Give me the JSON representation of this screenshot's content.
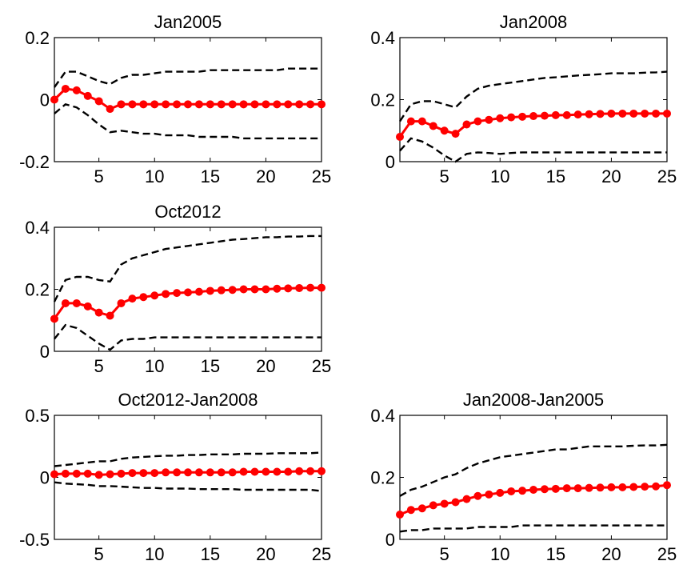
{
  "chart_data": [
    {
      "type": "line",
      "title": "Jan2005",
      "x": [
        1,
        2,
        3,
        4,
        5,
        6,
        7,
        8,
        9,
        10,
        11,
        12,
        13,
        14,
        15,
        16,
        17,
        18,
        19,
        20,
        21,
        22,
        23,
        24,
        25
      ],
      "xticks": [
        5,
        10,
        15,
        20,
        25
      ],
      "xlim": [
        1,
        25
      ],
      "ylim": [
        -0.2,
        0.2
      ],
      "yticks": [
        -0.2,
        0,
        0.2
      ],
      "ytick_labels": [
        "-0.2",
        "0",
        "0.2"
      ],
      "series": [
        {
          "role": "median",
          "color": "#ff0000",
          "values": [
            0.0,
            0.035,
            0.03,
            0.012,
            -0.005,
            -0.03,
            -0.015,
            -0.015,
            -0.015,
            -0.015,
            -0.015,
            -0.015,
            -0.015,
            -0.015,
            -0.015,
            -0.015,
            -0.015,
            -0.015,
            -0.015,
            -0.015,
            -0.015,
            -0.015,
            -0.015,
            -0.015,
            -0.015
          ]
        },
        {
          "role": "upper",
          "color": "#000000",
          "values": [
            0.04,
            0.09,
            0.09,
            0.075,
            0.06,
            0.05,
            0.07,
            0.08,
            0.08,
            0.085,
            0.09,
            0.09,
            0.09,
            0.09,
            0.095,
            0.095,
            0.095,
            0.095,
            0.095,
            0.095,
            0.095,
            0.1,
            0.1,
            0.1,
            0.1
          ]
        },
        {
          "role": "lower",
          "color": "#000000",
          "values": [
            -0.045,
            -0.015,
            -0.025,
            -0.05,
            -0.08,
            -0.105,
            -0.1,
            -0.105,
            -0.11,
            -0.11,
            -0.115,
            -0.115,
            -0.115,
            -0.12,
            -0.12,
            -0.12,
            -0.12,
            -0.125,
            -0.125,
            -0.125,
            -0.125,
            -0.125,
            -0.125,
            -0.125,
            -0.125
          ]
        }
      ]
    },
    {
      "type": "line",
      "title": "Jan2008",
      "x": [
        1,
        2,
        3,
        4,
        5,
        6,
        7,
        8,
        9,
        10,
        11,
        12,
        13,
        14,
        15,
        16,
        17,
        18,
        19,
        20,
        21,
        22,
        23,
        24,
        25
      ],
      "xticks": [
        5,
        10,
        15,
        20,
        25
      ],
      "xlim": [
        1,
        25
      ],
      "ylim": [
        0,
        0.4
      ],
      "yticks": [
        0,
        0.2,
        0.4
      ],
      "ytick_labels": [
        "0",
        "0.2",
        "0.4"
      ],
      "series": [
        {
          "role": "median",
          "color": "#ff0000",
          "values": [
            0.08,
            0.13,
            0.13,
            0.115,
            0.1,
            0.09,
            0.12,
            0.13,
            0.135,
            0.14,
            0.143,
            0.145,
            0.147,
            0.148,
            0.15,
            0.15,
            0.152,
            0.153,
            0.154,
            0.155,
            0.155,
            0.155,
            0.155,
            0.155,
            0.155
          ]
        },
        {
          "role": "upper",
          "color": "#000000",
          "values": [
            0.13,
            0.185,
            0.195,
            0.195,
            0.185,
            0.175,
            0.21,
            0.235,
            0.245,
            0.25,
            0.255,
            0.26,
            0.265,
            0.27,
            0.272,
            0.275,
            0.278,
            0.28,
            0.282,
            0.285,
            0.285,
            0.285,
            0.287,
            0.288,
            0.29
          ]
        },
        {
          "role": "lower",
          "color": "#000000",
          "values": [
            0.035,
            0.075,
            0.065,
            0.045,
            0.02,
            0.0,
            0.025,
            0.03,
            0.028,
            0.025,
            0.028,
            0.03,
            0.03,
            0.03,
            0.03,
            0.03,
            0.03,
            0.03,
            0.03,
            0.03,
            0.03,
            0.03,
            0.03,
            0.03,
            0.03
          ]
        }
      ]
    },
    {
      "type": "line",
      "title": "Oct2012",
      "x": [
        1,
        2,
        3,
        4,
        5,
        6,
        7,
        8,
        9,
        10,
        11,
        12,
        13,
        14,
        15,
        16,
        17,
        18,
        19,
        20,
        21,
        22,
        23,
        24,
        25
      ],
      "xticks": [
        5,
        10,
        15,
        20,
        25
      ],
      "xlim": [
        1,
        25
      ],
      "ylim": [
        0,
        0.4
      ],
      "yticks": [
        0,
        0.2,
        0.4
      ],
      "ytick_labels": [
        "0",
        "0.2",
        "0.4"
      ],
      "series": [
        {
          "role": "median",
          "color": "#ff0000",
          "values": [
            0.105,
            0.155,
            0.155,
            0.145,
            0.125,
            0.115,
            0.155,
            0.17,
            0.175,
            0.18,
            0.185,
            0.188,
            0.19,
            0.192,
            0.195,
            0.197,
            0.198,
            0.2,
            0.2,
            0.2,
            0.202,
            0.203,
            0.204,
            0.205,
            0.205
          ]
        },
        {
          "role": "upper",
          "color": "#000000",
          "values": [
            0.16,
            0.23,
            0.24,
            0.24,
            0.23,
            0.225,
            0.28,
            0.3,
            0.31,
            0.32,
            0.33,
            0.335,
            0.34,
            0.345,
            0.35,
            0.355,
            0.36,
            0.362,
            0.365,
            0.368,
            0.368,
            0.37,
            0.37,
            0.372,
            0.372
          ]
        },
        {
          "role": "lower",
          "color": "#000000",
          "values": [
            0.04,
            0.085,
            0.075,
            0.05,
            0.025,
            0.005,
            0.035,
            0.04,
            0.04,
            0.045,
            0.045,
            0.045,
            0.045,
            0.045,
            0.045,
            0.045,
            0.045,
            0.045,
            0.045,
            0.045,
            0.045,
            0.045,
            0.045,
            0.045,
            0.045
          ]
        }
      ]
    },
    {
      "type": "line",
      "title": "Oct2012-Jan2008",
      "x": [
        1,
        2,
        3,
        4,
        5,
        6,
        7,
        8,
        9,
        10,
        11,
        12,
        13,
        14,
        15,
        16,
        17,
        18,
        19,
        20,
        21,
        22,
        23,
        24,
        25
      ],
      "xticks": [
        5,
        10,
        15,
        20,
        25
      ],
      "xlim": [
        1,
        25
      ],
      "ylim": [
        -0.5,
        0.5
      ],
      "yticks": [
        -0.5,
        0,
        0.5
      ],
      "ytick_labels": [
        "-0.5",
        "0",
        "0.5"
      ],
      "series": [
        {
          "role": "median",
          "color": "#ff0000",
          "values": [
            0.025,
            0.03,
            0.03,
            0.03,
            0.02,
            0.025,
            0.03,
            0.035,
            0.035,
            0.035,
            0.04,
            0.04,
            0.04,
            0.04,
            0.04,
            0.04,
            0.04,
            0.045,
            0.045,
            0.045,
            0.045,
            0.045,
            0.05,
            0.05,
            0.05
          ]
        },
        {
          "role": "upper",
          "color": "#000000",
          "values": [
            0.09,
            0.1,
            0.11,
            0.12,
            0.13,
            0.13,
            0.15,
            0.16,
            0.165,
            0.17,
            0.175,
            0.175,
            0.18,
            0.18,
            0.185,
            0.185,
            0.185,
            0.19,
            0.19,
            0.19,
            0.195,
            0.195,
            0.195,
            0.195,
            0.2
          ]
        },
        {
          "role": "lower",
          "color": "#000000",
          "values": [
            -0.04,
            -0.05,
            -0.055,
            -0.06,
            -0.07,
            -0.07,
            -0.075,
            -0.08,
            -0.085,
            -0.085,
            -0.09,
            -0.09,
            -0.09,
            -0.095,
            -0.095,
            -0.095,
            -0.095,
            -0.1,
            -0.1,
            -0.1,
            -0.1,
            -0.1,
            -0.1,
            -0.1,
            -0.11
          ]
        }
      ]
    },
    {
      "type": "line",
      "title": "Jan2008-Jan2005",
      "x": [
        1,
        2,
        3,
        4,
        5,
        6,
        7,
        8,
        9,
        10,
        11,
        12,
        13,
        14,
        15,
        16,
        17,
        18,
        19,
        20,
        21,
        22,
        23,
        24,
        25
      ],
      "xticks": [
        5,
        10,
        15,
        20,
        25
      ],
      "xlim": [
        1,
        25
      ],
      "ylim": [
        0,
        0.4
      ],
      "yticks": [
        0,
        0.2,
        0.4
      ],
      "ytick_labels": [
        "0",
        "0.2",
        "0.4"
      ],
      "series": [
        {
          "role": "median",
          "color": "#ff0000",
          "values": [
            0.08,
            0.095,
            0.1,
            0.11,
            0.115,
            0.12,
            0.13,
            0.14,
            0.145,
            0.15,
            0.155,
            0.157,
            0.16,
            0.162,
            0.163,
            0.165,
            0.165,
            0.166,
            0.167,
            0.168,
            0.168,
            0.169,
            0.17,
            0.171,
            0.175
          ]
        },
        {
          "role": "upper",
          "color": "#000000",
          "values": [
            0.14,
            0.16,
            0.17,
            0.185,
            0.2,
            0.21,
            0.23,
            0.245,
            0.255,
            0.265,
            0.27,
            0.275,
            0.28,
            0.285,
            0.29,
            0.29,
            0.295,
            0.3,
            0.3,
            0.3,
            0.3,
            0.302,
            0.303,
            0.303,
            0.305
          ]
        },
        {
          "role": "lower",
          "color": "#000000",
          "values": [
            0.025,
            0.03,
            0.03,
            0.035,
            0.035,
            0.035,
            0.035,
            0.04,
            0.04,
            0.04,
            0.04,
            0.045,
            0.045,
            0.045,
            0.045,
            0.045,
            0.045,
            0.045,
            0.045,
            0.045,
            0.045,
            0.045,
            0.045,
            0.045,
            0.045
          ]
        }
      ]
    }
  ]
}
